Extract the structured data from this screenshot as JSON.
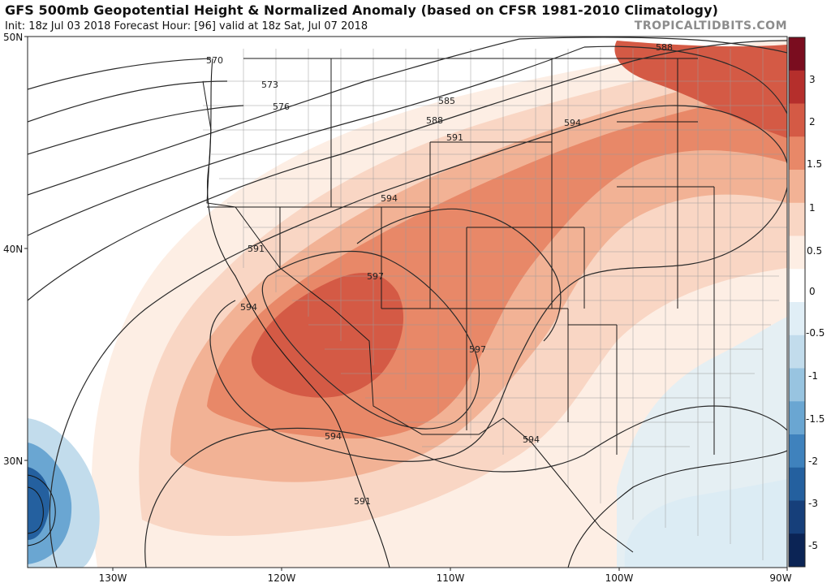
{
  "header": {
    "title": "GFS 500mb Geopotential Height & Normalized Anomaly (based on CFSR 1981-2010 Climatology)",
    "subtitle": "Init: 18z Jul 03 2018   Forecast Hour: [96]   valid at 18z Sat, Jul 07 2018",
    "brand": "TROPICALTIDBITS.COM"
  },
  "map": {
    "lat_labels": [
      "50N",
      "40N",
      "30N"
    ],
    "lon_labels": [
      "130W",
      "120W",
      "110W",
      "100W",
      "90W"
    ],
    "contour_labels": [
      "570",
      "573",
      "576",
      "585",
      "588",
      "591",
      "594",
      "594",
      "591",
      "597",
      "594",
      "597",
      "594",
      "594",
      "591",
      "588"
    ]
  },
  "colorbar": {
    "labels": [
      "3",
      "2",
      "1.5",
      "1",
      "0.5",
      "0",
      "-0.5",
      "-1",
      "-1.5",
      "-2",
      "-3",
      "-5"
    ],
    "colors": [
      "#7a0d1f",
      "#b52f2c",
      "#d45a45",
      "#e88868",
      "#f2b295",
      "#f9d6c4",
      "#fdeee4",
      "#ffffff",
      "#e0eef6",
      "#c2dcec",
      "#98c4e0",
      "#6aa6d2",
      "#3f82bd",
      "#24609f",
      "#163f7a",
      "#0b2455"
    ]
  }
}
